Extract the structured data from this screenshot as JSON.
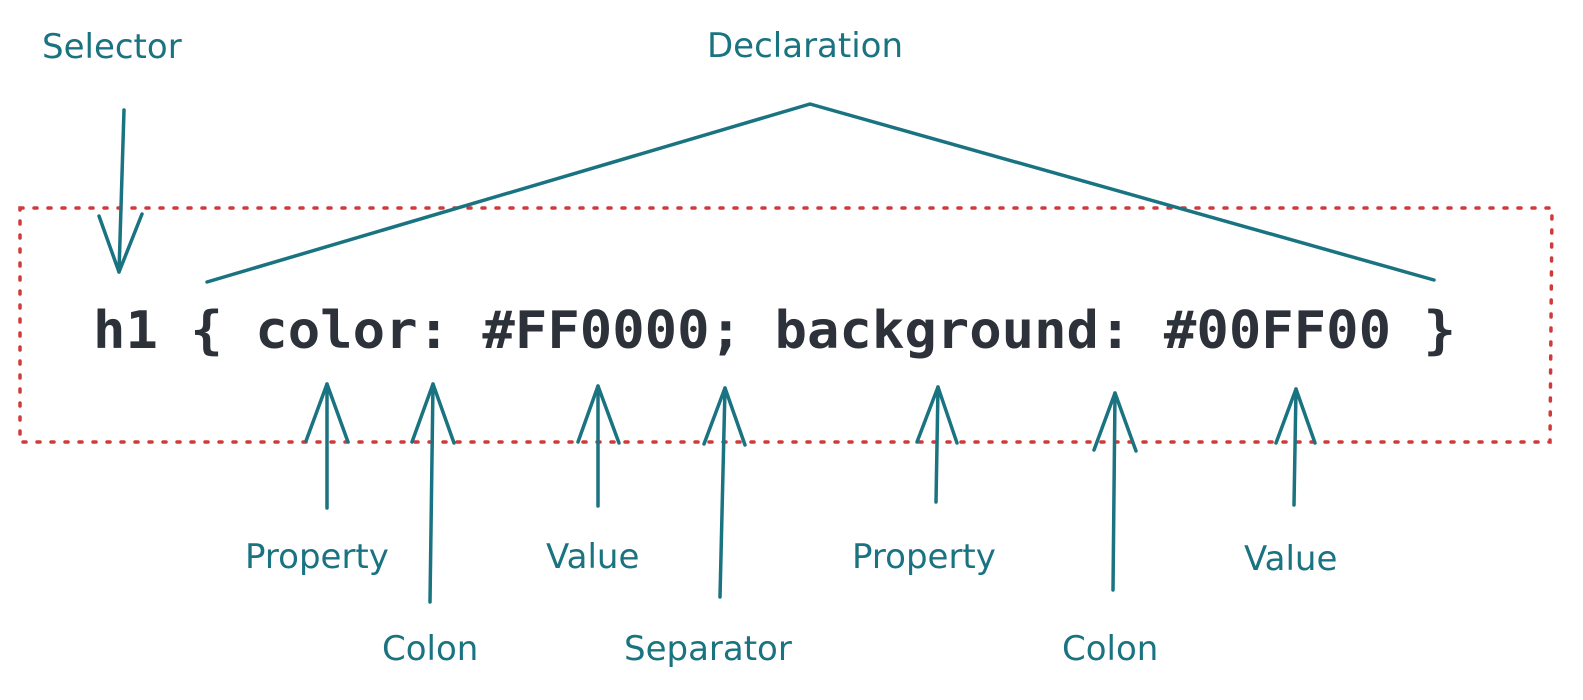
{
  "code": {
    "selector": "h1",
    "open_brace": "{",
    "property_1": "color",
    "colon_1": ":",
    "value_1": "#FF0000",
    "separator": ";",
    "property_2": "background",
    "colon_2": ":",
    "value_2": "#00FF00",
    "close_brace": "}"
  },
  "labels": {
    "selector": "Selector",
    "declaration": "Declaration",
    "property_1": "Property",
    "colon_1": "Colon",
    "value_1": "Value",
    "separator": "Separator",
    "property_2": "Property",
    "colon_2": "Colon",
    "value_2": "Value"
  },
  "colors": {
    "annotation": "#1a7381",
    "code": "#2d3139",
    "box_border": "#d03a3a",
    "background": "#ffffff"
  }
}
